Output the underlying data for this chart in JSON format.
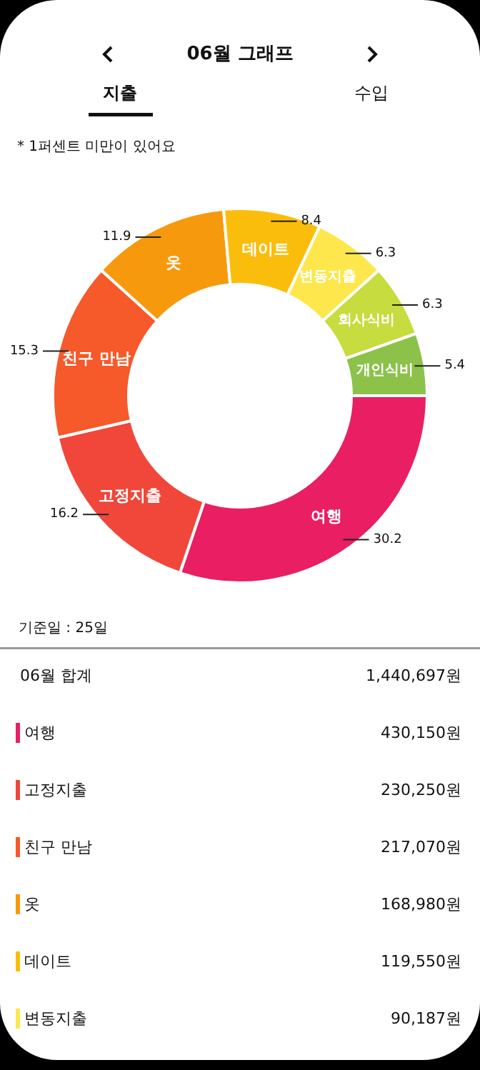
{
  "chart_data": {
    "type": "donut",
    "title": "06월 그래프",
    "categories": [
      "여행",
      "고정지출",
      "친구 만남",
      "옷",
      "데이트",
      "변동지출",
      "회사식비",
      "개인식비"
    ],
    "values": [
      30.2,
      16.2,
      15.3,
      11.9,
      8.4,
      6.3,
      6.3,
      5.4
    ],
    "colors": [
      "#e91e63",
      "#f0473a",
      "#f6592a",
      "#f7990d",
      "#fbbd0c",
      "#fde74c",
      "#c6dc3f",
      "#8cc24a"
    ],
    "data_labels": true,
    "annotations": [
      "지출",
      "수입",
      "* 1퍼센트 미만이 있어요",
      "기준일 : 25일",
      "06월 합계",
      "1,440,697원",
      "여행",
      "430,150원",
      "고정지출",
      "230,250원",
      "친구 만남",
      "217,070원",
      "옷",
      "168,980원",
      "데이트",
      "119,550원",
      "변동지출",
      "90,187원"
    ]
  }
}
